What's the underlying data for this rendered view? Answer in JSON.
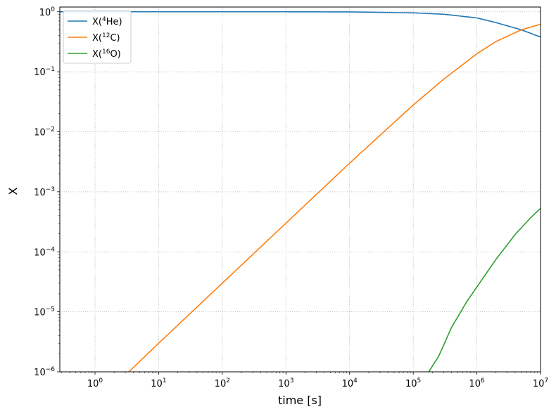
{
  "chart_data": {
    "type": "line",
    "title": "",
    "xlabel": "time [s]",
    "ylabel": "X",
    "xscale": "log",
    "yscale": "log",
    "xlim": [
      0.28,
      10000000
    ],
    "ylim": [
      1e-06,
      1.2
    ],
    "grid": true,
    "legend_position": "top-left",
    "x_ticks": [
      {
        "value": 1,
        "base": "10",
        "exp": "0"
      },
      {
        "value": 10,
        "base": "10",
        "exp": "1"
      },
      {
        "value": 100,
        "base": "10",
        "exp": "2"
      },
      {
        "value": 1000,
        "base": "10",
        "exp": "3"
      },
      {
        "value": 10000,
        "base": "10",
        "exp": "4"
      },
      {
        "value": 100000,
        "base": "10",
        "exp": "5"
      },
      {
        "value": 1000000,
        "base": "10",
        "exp": "6"
      },
      {
        "value": 10000000,
        "base": "10",
        "exp": "7"
      }
    ],
    "y_ticks": [
      {
        "value": 1e-06,
        "base": "10",
        "exp": "−6"
      },
      {
        "value": 1e-05,
        "base": "10",
        "exp": "−5"
      },
      {
        "value": 0.0001,
        "base": "10",
        "exp": "−4"
      },
      {
        "value": 0.001,
        "base": "10",
        "exp": "−3"
      },
      {
        "value": 0.01,
        "base": "10",
        "exp": "−2"
      },
      {
        "value": 0.1,
        "base": "10",
        "exp": "−1"
      },
      {
        "value": 1,
        "base": "10",
        "exp": "0"
      }
    ],
    "series": [
      {
        "name_prefix": "X(",
        "name_sup": "4",
        "name_suffix": "He)",
        "color": "#1f77b4",
        "x": [
          0.28,
          1,
          10,
          100,
          1000,
          10000,
          100000,
          300000,
          1000000,
          2000000,
          5000000,
          10000000
        ],
        "y": [
          1.0,
          1.0,
          1.0,
          1.0,
          1.0,
          0.995,
          0.96,
          0.91,
          0.79,
          0.66,
          0.5,
          0.38
        ]
      },
      {
        "name_prefix": "X(",
        "name_sup": "12",
        "name_suffix": "C)",
        "color": "#ff7f0e",
        "x": [
          3.4,
          10,
          100,
          1000,
          10000,
          100000,
          300000,
          1000000,
          2000000,
          5000000,
          10000000
        ],
        "y": [
          1e-06,
          3e-06,
          3e-05,
          0.0003,
          0.003,
          0.028,
          0.075,
          0.2,
          0.32,
          0.5,
          0.62
        ]
      },
      {
        "name_prefix": "X(",
        "name_sup": "16",
        "name_suffix": "O)",
        "color": "#2ca02c",
        "x": [
          175000,
          250000,
          400000,
          700000,
          1000000,
          2000000,
          4000000,
          7000000,
          10000000
        ],
        "y": [
          1e-06,
          1.8e-06,
          5.5e-06,
          1.5e-05,
          2.6e-05,
          7.5e-05,
          0.000195,
          0.00037,
          0.00053
        ]
      }
    ]
  }
}
